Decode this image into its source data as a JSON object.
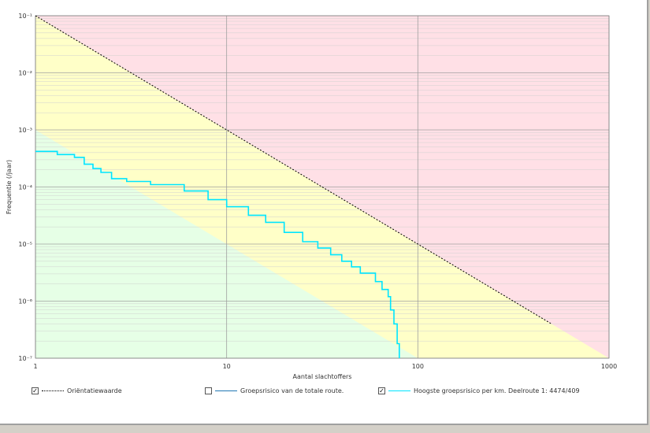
{
  "chart_data": {
    "type": "line",
    "title": "",
    "xlabel": "Aantal slachtoffers",
    "ylabel": "Frequentie (/jaar)",
    "x_scale": "log",
    "y_scale": "log",
    "xlim": [
      1,
      1000
    ],
    "ylim": [
      1e-07,
      0.1
    ],
    "x_ticks": [
      {
        "value": 1,
        "label": "1"
      },
      {
        "value": 10,
        "label": "10"
      },
      {
        "value": 100,
        "label": "100"
      },
      {
        "value": 1000,
        "label": "1000"
      }
    ],
    "y_ticks": [
      {
        "value": 0.1,
        "label": "10⁻¹"
      },
      {
        "value": 0.01,
        "label": "10⁻²"
      },
      {
        "value": 0.001,
        "label": "10⁻³"
      },
      {
        "value": 0.0001,
        "label": "10⁻⁴"
      },
      {
        "value": 1e-05,
        "label": "10⁻⁵"
      },
      {
        "value": 1e-06,
        "label": "10⁻⁶"
      },
      {
        "value": 1e-07,
        "label": "10⁻⁷"
      }
    ],
    "regions": {
      "red": "#ffe0e6",
      "yellow": "#ffffc8",
      "green": "#e6ffe6"
    },
    "series": [
      {
        "name": "Oriëntatiewaarde",
        "style": "dotted",
        "color": "#000000",
        "visible": true,
        "x": [
          1,
          10,
          100,
          500
        ],
        "y": [
          0.1,
          0.001,
          1e-05,
          4e-07
        ]
      },
      {
        "name": "Groepsrisico van de totale route.",
        "style": "solid",
        "color": "#1f77b4",
        "visible": false,
        "x": [],
        "y": []
      },
      {
        "name": "Hoogste groepsrisico per km. Deelroute 1: 4474/409",
        "style": "solid",
        "color": "#00e5ff",
        "visible": true,
        "x": [
          1,
          1.3,
          1.6,
          1.8,
          2,
          2.2,
          2.5,
          3,
          4,
          6,
          8,
          10,
          13,
          16,
          20,
          25,
          30,
          35,
          40,
          45,
          50,
          60,
          65,
          70,
          72,
          75,
          78,
          80
        ],
        "y": [
          0.00042,
          0.00037,
          0.00033,
          0.00025,
          0.00021,
          0.00018,
          0.00014,
          0.000125,
          0.00011,
          8.5e-05,
          6e-05,
          4.5e-05,
          3.2e-05,
          2.4e-05,
          1.6e-05,
          1.1e-05,
          8.5e-06,
          6.5e-06,
          5e-06,
          4e-06,
          3.1e-06,
          2.2e-06,
          1.6e-06,
          1.2e-06,
          7e-07,
          4e-07,
          1.8e-07,
          1e-07
        ]
      }
    ],
    "grid": true,
    "legend_position": "bottom"
  }
}
